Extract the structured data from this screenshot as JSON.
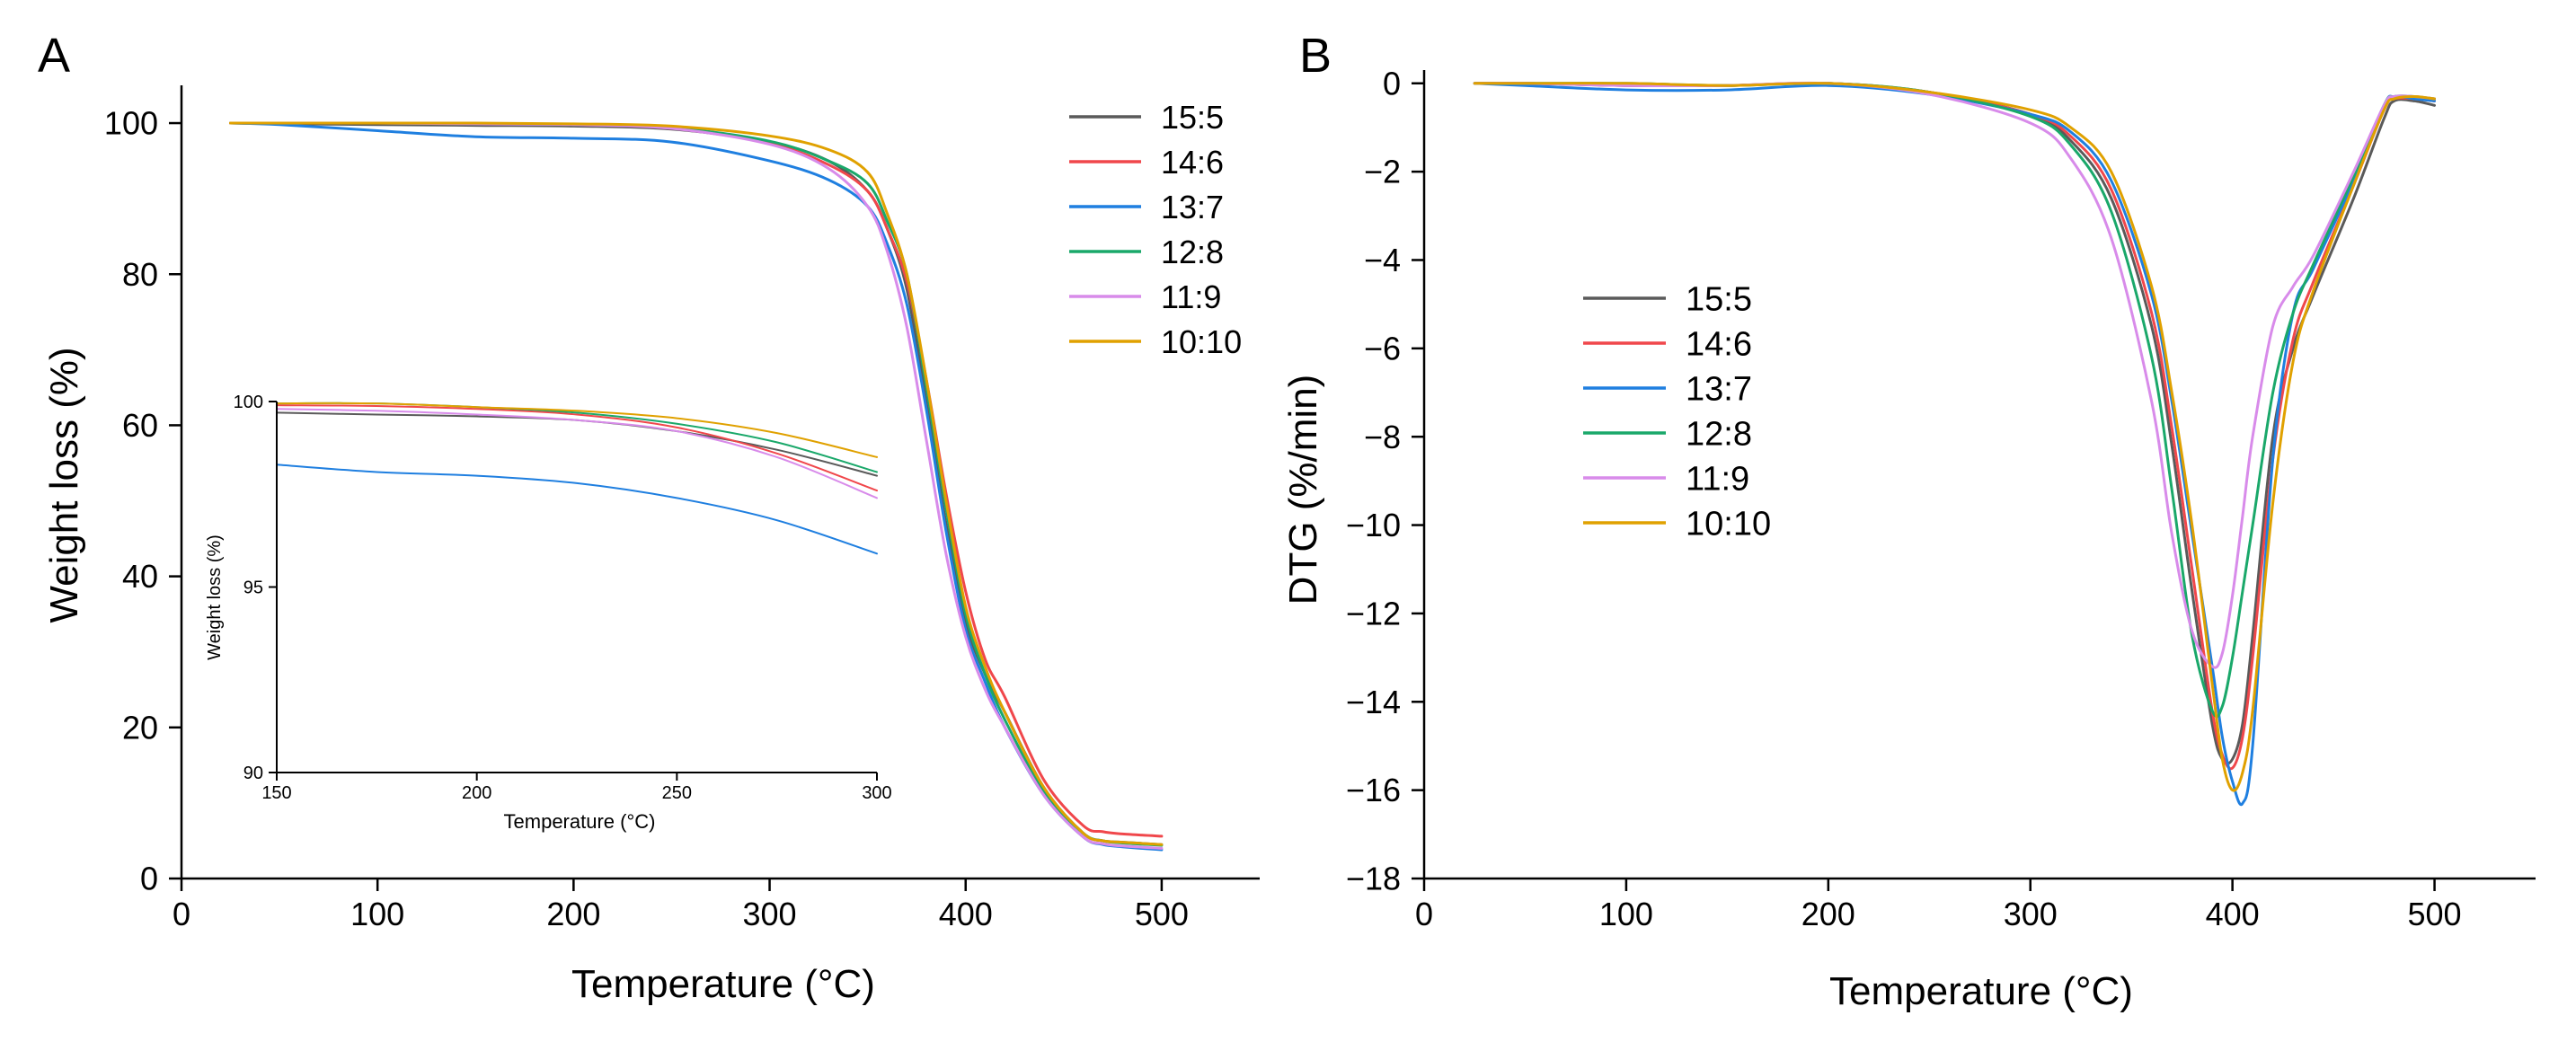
{
  "colors": {
    "15:5": "#5a5a5a",
    "14:6": "#f0474b",
    "13:7": "#1f7fe0",
    "12:8": "#1aa86a",
    "11:9": "#d88bea",
    "10:10": "#e0a100"
  },
  "chart_data": [
    {
      "panel": "A",
      "type": "line",
      "panel_label": "A",
      "title": "",
      "xlabel": "Temperature (°C)",
      "ylabel": "Weight loss (%)",
      "xlim": [
        0,
        550
      ],
      "ylim": [
        0,
        105
      ],
      "xticks": [
        0,
        100,
        200,
        300,
        400,
        500
      ],
      "yticks": [
        0,
        20,
        40,
        60,
        80,
        100
      ],
      "legend": [
        "15:5",
        "14:6",
        "13:7",
        "12:8",
        "11:9",
        "10:10"
      ],
      "legend_position": "top-right",
      "series": [
        {
          "name": "15:5",
          "x": [
            25,
            50,
            100,
            150,
            200,
            250,
            300,
            330,
            350,
            360,
            370,
            380,
            390,
            400,
            410,
            420,
            440,
            460,
            470,
            480,
            500
          ],
          "y": [
            100,
            99.9,
            99.8,
            99.7,
            99.6,
            99.2,
            97.5,
            95,
            91,
            86,
            78,
            63,
            47,
            34,
            27,
            22,
            12,
            6,
            5,
            4.8,
            4.5
          ]
        },
        {
          "name": "14:6",
          "x": [
            25,
            50,
            100,
            150,
            200,
            250,
            300,
            330,
            350,
            360,
            370,
            380,
            390,
            400,
            410,
            420,
            440,
            460,
            470,
            480,
            500
          ],
          "y": [
            100,
            100,
            100,
            99.9,
            99.8,
            99.3,
            97.3,
            94.5,
            91,
            86,
            79,
            66,
            51,
            38,
            29,
            24,
            13,
            7,
            6.2,
            5.9,
            5.6
          ]
        },
        {
          "name": "13:7",
          "x": [
            25,
            50,
            100,
            150,
            200,
            250,
            300,
            330,
            350,
            360,
            370,
            380,
            390,
            400,
            410,
            420,
            440,
            460,
            470,
            480,
            500
          ],
          "y": [
            100,
            99.8,
            99,
            98.2,
            98,
            97.5,
            95,
            92.5,
            89,
            84,
            76,
            62,
            46,
            33,
            26,
            20,
            11,
            5.5,
            4.5,
            4.2,
            3.8
          ]
        },
        {
          "name": "12:8",
          "x": [
            25,
            50,
            100,
            150,
            200,
            250,
            300,
            330,
            350,
            360,
            370,
            380,
            390,
            400,
            410,
            420,
            440,
            460,
            470,
            480,
            500
          ],
          "y": [
            100,
            100,
            100,
            99.9,
            99.8,
            99.4,
            97.6,
            95,
            92,
            87,
            80,
            65,
            49,
            35,
            27,
            21,
            11.5,
            6,
            5,
            4.7,
            4.4
          ]
        },
        {
          "name": "11:9",
          "x": [
            25,
            50,
            100,
            150,
            200,
            250,
            300,
            330,
            350,
            360,
            370,
            380,
            390,
            400,
            410,
            420,
            440,
            460,
            470,
            480,
            500
          ],
          "y": [
            100,
            100,
            100,
            99.9,
            99.8,
            99.3,
            97.2,
            94,
            89,
            83,
            73,
            58,
            43,
            32,
            25,
            20,
            11,
            5.5,
            4.6,
            4.3,
            4
          ]
        },
        {
          "name": "10:10",
          "x": [
            25,
            50,
            100,
            150,
            200,
            250,
            300,
            330,
            350,
            360,
            370,
            380,
            390,
            400,
            410,
            420,
            440,
            460,
            470,
            480,
            500
          ],
          "y": [
            100,
            100,
            100,
            100,
            99.9,
            99.6,
            98.3,
            96.5,
            93.5,
            88,
            80,
            66,
            50,
            36,
            28,
            22,
            12,
            6,
            5,
            4.8,
            4.5
          ]
        }
      ],
      "inset": {
        "xlabel": "Temperature (°C)",
        "ylabel": "Weight loss (%)",
        "xlim": [
          150,
          300
        ],
        "ylim": [
          90,
          100
        ],
        "xticks": [
          150,
          200,
          250,
          300
        ],
        "xtick_labels": [
          "150",
          "200",
          "250",
          "300"
        ],
        "yticks": [
          90,
          95,
          100
        ],
        "series": [
          {
            "name": "15:5",
            "x": [
              150,
              175,
              200,
              225,
              250,
              275,
              300
            ],
            "y": [
              99.7,
              99.65,
              99.6,
              99.5,
              99.2,
              98.7,
              98.0
            ]
          },
          {
            "name": "14:6",
            "x": [
              150,
              175,
              200,
              225,
              250,
              275,
              300
            ],
            "y": [
              99.9,
              99.88,
              99.8,
              99.65,
              99.3,
              98.6,
              97.6
            ]
          },
          {
            "name": "13:7",
            "x": [
              150,
              175,
              200,
              225,
              250,
              275,
              300
            ],
            "y": [
              98.3,
              98.1,
              98.0,
              97.8,
              97.4,
              96.8,
              95.9
            ]
          },
          {
            "name": "12:8",
            "x": [
              150,
              175,
              200,
              225,
              250,
              275,
              300
            ],
            "y": [
              99.95,
              99.95,
              99.85,
              99.7,
              99.4,
              98.9,
              98.1
            ]
          },
          {
            "name": "11:9",
            "x": [
              150,
              175,
              200,
              225,
              250,
              275,
              300
            ],
            "y": [
              99.8,
              99.75,
              99.65,
              99.5,
              99.2,
              98.5,
              97.4
            ]
          },
          {
            "name": "10:10",
            "x": [
              150,
              175,
              200,
              225,
              250,
              275,
              300
            ],
            "y": [
              99.95,
              99.95,
              99.85,
              99.75,
              99.55,
              99.15,
              98.5
            ]
          }
        ]
      }
    },
    {
      "panel": "B",
      "type": "line",
      "panel_label": "B",
      "title": "",
      "xlabel": "Temperature (°C)",
      "ylabel": "DTG (%/min)",
      "xlim": [
        0,
        550
      ],
      "ylim": [
        -18,
        0.3
      ],
      "xticks": [
        0,
        100,
        200,
        300,
        400,
        500
      ],
      "yticks": [
        0,
        -2,
        -4,
        -6,
        -8,
        -10,
        -12,
        -14,
        -16,
        -18
      ],
      "ytick_labels": [
        "0",
        "−2",
        "−4",
        "−6",
        "−8",
        "−10",
        "−12",
        "−14",
        "−16",
        "−18"
      ],
      "legend": [
        "15:5",
        "14:6",
        "13:7",
        "12:8",
        "11:9",
        "10:10"
      ],
      "legend_position": "center-left",
      "series": [
        {
          "name": "15:5",
          "x": [
            25,
            50,
            100,
            150,
            200,
            250,
            300,
            320,
            340,
            360,
            370,
            380,
            390,
            395,
            400,
            405,
            410,
            420,
            430,
            440,
            460,
            475,
            480,
            490,
            500
          ],
          "y": [
            0,
            0,
            -0.05,
            -0.05,
            0,
            -0.2,
            -0.7,
            -1.3,
            -2.6,
            -5.5,
            -8.2,
            -11.5,
            -14.5,
            -15.3,
            -15.3,
            -14.5,
            -12.5,
            -8,
            -6,
            -4.8,
            -2.6,
            -0.8,
            -0.4,
            -0.4,
            -0.5
          ]
        },
        {
          "name": "14:6",
          "x": [
            25,
            50,
            100,
            150,
            200,
            250,
            300,
            320,
            340,
            360,
            370,
            380,
            390,
            395,
            400,
            405,
            410,
            420,
            430,
            440,
            460,
            475,
            480,
            490,
            500
          ],
          "y": [
            0,
            0,
            -0.05,
            -0.05,
            0,
            -0.2,
            -0.7,
            -1.2,
            -2.4,
            -5.2,
            -7.8,
            -11,
            -14.2,
            -15.2,
            -15.5,
            -14.8,
            -13,
            -8.5,
            -5.8,
            -4.5,
            -2.3,
            -0.6,
            -0.35,
            -0.35,
            -0.4
          ]
        },
        {
          "name": "13:7",
          "x": [
            25,
            50,
            100,
            150,
            200,
            250,
            300,
            320,
            340,
            360,
            370,
            380,
            390,
            395,
            400,
            405,
            410,
            420,
            430,
            440,
            460,
            475,
            480,
            490,
            500
          ],
          "y": [
            0,
            -0.05,
            -0.15,
            -0.15,
            -0.05,
            -0.25,
            -0.7,
            -1.1,
            -2.2,
            -4.8,
            -7.2,
            -10.2,
            -13.2,
            -14.8,
            -15.8,
            -16.3,
            -15,
            -8.5,
            -5.2,
            -4.2,
            -2.2,
            -0.5,
            -0.3,
            -0.35,
            -0.4
          ]
        },
        {
          "name": "12:8",
          "x": [
            25,
            50,
            100,
            150,
            200,
            250,
            300,
            320,
            340,
            360,
            370,
            380,
            390,
            395,
            400,
            405,
            410,
            420,
            430,
            440,
            460,
            475,
            480,
            490,
            500
          ],
          "y": [
            0,
            0,
            0,
            -0.05,
            0,
            -0.2,
            -0.75,
            -1.4,
            -2.9,
            -6.2,
            -9.2,
            -12.5,
            -14.2,
            -14.1,
            -13,
            -11.5,
            -10,
            -7,
            -5.2,
            -4.1,
            -2.1,
            -0.5,
            -0.3,
            -0.3,
            -0.35
          ]
        },
        {
          "name": "11:9",
          "x": [
            25,
            50,
            100,
            150,
            200,
            250,
            300,
            320,
            340,
            360,
            370,
            380,
            390,
            395,
            400,
            405,
            410,
            420,
            430,
            440,
            460,
            475,
            480,
            490,
            500
          ],
          "y": [
            0,
            0,
            -0.05,
            -0.05,
            0,
            -0.25,
            -0.9,
            -1.7,
            -3.5,
            -7.2,
            -10.2,
            -12.4,
            -13.2,
            -12.9,
            -11.6,
            -9.8,
            -8,
            -5.5,
            -4.6,
            -3.9,
            -2,
            -0.5,
            -0.3,
            -0.3,
            -0.35
          ]
        },
        {
          "name": "10:10",
          "x": [
            25,
            50,
            100,
            150,
            200,
            250,
            300,
            320,
            340,
            360,
            370,
            380,
            390,
            395,
            400,
            405,
            410,
            420,
            430,
            440,
            460,
            475,
            480,
            490,
            500
          ],
          "y": [
            0,
            0,
            0,
            -0.05,
            0,
            -0.2,
            -0.6,
            -1,
            -2,
            -4.6,
            -7,
            -10,
            -13.6,
            -15.3,
            -16,
            -15.6,
            -14.2,
            -9.5,
            -6.3,
            -4.7,
            -2.3,
            -0.6,
            -0.35,
            -0.3,
            -0.35
          ]
        }
      ]
    }
  ]
}
